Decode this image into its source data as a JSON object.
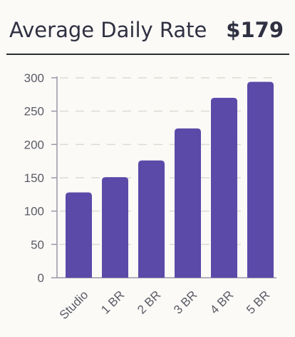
{
  "header": {
    "title": "Average Daily Rate",
    "value": "$179"
  },
  "colors": {
    "bar": "#5b4aa8",
    "grid": "#dddad3",
    "axis": "#9a98a6",
    "tick_text": "#5b5b66"
  },
  "chart_data": {
    "type": "bar",
    "categories": [
      "Studio",
      "1 BR",
      "2 BR",
      "3 BR",
      "4 BR",
      "5 BR"
    ],
    "values": [
      128,
      151,
      176,
      224,
      270,
      294
    ],
    "ylim": [
      0,
      300
    ],
    "yticks": [
      0,
      50,
      100,
      150,
      200,
      250,
      300
    ],
    "grid": true,
    "title": "",
    "xlabel": "",
    "ylabel": ""
  }
}
